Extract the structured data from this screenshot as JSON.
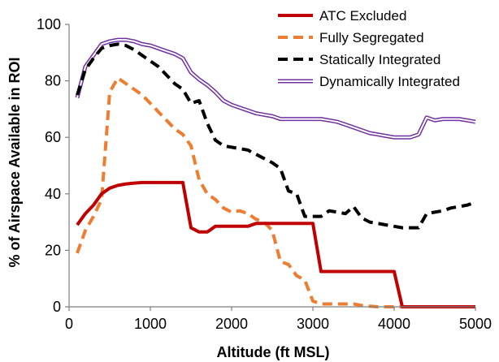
{
  "chart_data": {
    "type": "line",
    "title": "",
    "xlabel": "Altitude (ft MSL)",
    "ylabel": "% of Airspace Available in ROI",
    "xlim": [
      0,
      5000
    ],
    "ylim": [
      0,
      100
    ],
    "xticks": [
      0,
      1000,
      2000,
      3000,
      4000,
      5000
    ],
    "yticks": [
      0,
      20,
      40,
      60,
      80,
      100
    ],
    "grid": false,
    "legend_position": "top-right",
    "series": [
      {
        "name": "ATC Excluded",
        "color": "#c00000",
        "style": "solid",
        "points": [
          [
            100,
            29
          ],
          [
            200,
            33
          ],
          [
            300,
            36
          ],
          [
            400,
            40
          ],
          [
            500,
            42
          ],
          [
            600,
            43
          ],
          [
            700,
            43.5
          ],
          [
            800,
            43.8
          ],
          [
            900,
            44
          ],
          [
            1000,
            44
          ],
          [
            1100,
            44
          ],
          [
            1200,
            44
          ],
          [
            1300,
            44
          ],
          [
            1400,
            44
          ],
          [
            1500,
            28
          ],
          [
            1600,
            26.5
          ],
          [
            1700,
            26.5
          ],
          [
            1800,
            28.5
          ],
          [
            1900,
            28.5
          ],
          [
            2000,
            28.5
          ],
          [
            2100,
            28.5
          ],
          [
            2200,
            28.5
          ],
          [
            2300,
            29.5
          ],
          [
            2400,
            29.5
          ],
          [
            2500,
            29.5
          ],
          [
            2600,
            29.5
          ],
          [
            2700,
            29.5
          ],
          [
            2800,
            29.5
          ],
          [
            2900,
            29.5
          ],
          [
            3000,
            29.5
          ],
          [
            3100,
            12.5
          ],
          [
            3200,
            12.5
          ],
          [
            3300,
            12.5
          ],
          [
            3400,
            12.5
          ],
          [
            3500,
            12.5
          ],
          [
            3600,
            12.5
          ],
          [
            3700,
            12.5
          ],
          [
            3800,
            12.5
          ],
          [
            3900,
            12.5
          ],
          [
            4000,
            12.5
          ],
          [
            4100,
            0
          ],
          [
            4200,
            0
          ],
          [
            4300,
            0
          ],
          [
            4400,
            0
          ],
          [
            4500,
            0
          ],
          [
            4600,
            0
          ],
          [
            4700,
            0
          ],
          [
            4800,
            0
          ],
          [
            4900,
            0
          ],
          [
            5000,
            0
          ]
        ]
      },
      {
        "name": "Fully Segregated",
        "color": "#ed7d31",
        "style": "dashed",
        "points": [
          [
            100,
            19
          ],
          [
            200,
            27
          ],
          [
            300,
            32
          ],
          [
            400,
            38
          ],
          [
            500,
            76
          ],
          [
            600,
            81
          ],
          [
            700,
            79
          ],
          [
            800,
            77
          ],
          [
            900,
            75
          ],
          [
            1000,
            72
          ],
          [
            1100,
            69
          ],
          [
            1200,
            66
          ],
          [
            1300,
            63
          ],
          [
            1400,
            61
          ],
          [
            1500,
            57
          ],
          [
            1600,
            45
          ],
          [
            1700,
            40
          ],
          [
            1800,
            38
          ],
          [
            1900,
            35
          ],
          [
            2000,
            33.5
          ],
          [
            2100,
            34
          ],
          [
            2200,
            33
          ],
          [
            2300,
            31
          ],
          [
            2400,
            30
          ],
          [
            2500,
            27
          ],
          [
            2600,
            16
          ],
          [
            2700,
            15
          ],
          [
            2800,
            11
          ],
          [
            2900,
            9.5
          ],
          [
            3000,
            2
          ],
          [
            3100,
            1
          ],
          [
            3200,
            1
          ],
          [
            3300,
            1
          ],
          [
            3400,
            1
          ],
          [
            3500,
            1
          ],
          [
            3600,
            0.5
          ],
          [
            3700,
            0.2
          ],
          [
            3800,
            0
          ],
          [
            3900,
            0
          ],
          [
            4000,
            0
          ],
          [
            4100,
            0
          ],
          [
            4200,
            0
          ],
          [
            4300,
            0
          ],
          [
            4400,
            0
          ],
          [
            4500,
            0
          ],
          [
            4600,
            0
          ],
          [
            4700,
            0
          ],
          [
            4800,
            0
          ],
          [
            4900,
            0
          ],
          [
            5000,
            0
          ]
        ]
      },
      {
        "name": "Statically Integrated",
        "color": "#000000",
        "style": "dashed",
        "points": [
          [
            100,
            75
          ],
          [
            200,
            84
          ],
          [
            300,
            88
          ],
          [
            400,
            91.5
          ],
          [
            500,
            92.5
          ],
          [
            600,
            93
          ],
          [
            700,
            92.5
          ],
          [
            800,
            91
          ],
          [
            900,
            89
          ],
          [
            1000,
            87
          ],
          [
            1100,
            85
          ],
          [
            1200,
            82
          ],
          [
            1300,
            79
          ],
          [
            1400,
            77
          ],
          [
            1500,
            72
          ],
          [
            1600,
            73
          ],
          [
            1700,
            65
          ],
          [
            1800,
            59
          ],
          [
            1900,
            57
          ],
          [
            2000,
            56.5
          ],
          [
            2100,
            56
          ],
          [
            2200,
            55.5
          ],
          [
            2300,
            54
          ],
          [
            2400,
            52.5
          ],
          [
            2500,
            51
          ],
          [
            2600,
            49
          ],
          [
            2700,
            41
          ],
          [
            2800,
            40
          ],
          [
            2900,
            32
          ],
          [
            3000,
            32
          ],
          [
            3100,
            32
          ],
          [
            3200,
            34
          ],
          [
            3300,
            33.5
          ],
          [
            3400,
            33
          ],
          [
            3500,
            35.5
          ],
          [
            3600,
            31.5
          ],
          [
            3700,
            30
          ],
          [
            3800,
            29.5
          ],
          [
            3900,
            29
          ],
          [
            4000,
            28.5
          ],
          [
            4100,
            28
          ],
          [
            4200,
            28
          ],
          [
            4300,
            28
          ],
          [
            4400,
            33
          ],
          [
            4500,
            33.5
          ],
          [
            4600,
            34
          ],
          [
            4700,
            35
          ],
          [
            4800,
            35.5
          ],
          [
            4900,
            36
          ],
          [
            5000,
            37
          ]
        ]
      },
      {
        "name": "Dynamically Integrated",
        "color": "#7030a0",
        "style": "double",
        "points": [
          [
            100,
            74
          ],
          [
            200,
            85
          ],
          [
            300,
            89
          ],
          [
            400,
            93
          ],
          [
            500,
            94
          ],
          [
            600,
            94.5
          ],
          [
            700,
            94.5
          ],
          [
            800,
            94
          ],
          [
            900,
            93
          ],
          [
            1000,
            92.5
          ],
          [
            1100,
            91.5
          ],
          [
            1200,
            90.5
          ],
          [
            1300,
            89.5
          ],
          [
            1400,
            88
          ],
          [
            1500,
            83
          ],
          [
            1600,
            80.5
          ],
          [
            1700,
            78.5
          ],
          [
            1800,
            76
          ],
          [
            1900,
            73
          ],
          [
            2000,
            71.5
          ],
          [
            2100,
            70.5
          ],
          [
            2200,
            69.5
          ],
          [
            2300,
            68.5
          ],
          [
            2400,
            68
          ],
          [
            2500,
            67.5
          ],
          [
            2600,
            66.5
          ],
          [
            2700,
            66.5
          ],
          [
            2800,
            66.5
          ],
          [
            2900,
            66.5
          ],
          [
            3000,
            66.5
          ],
          [
            3100,
            66.5
          ],
          [
            3200,
            66
          ],
          [
            3300,
            65.5
          ],
          [
            3400,
            64.5
          ],
          [
            3500,
            63.5
          ],
          [
            3600,
            62.5
          ],
          [
            3700,
            61.5
          ],
          [
            3800,
            61
          ],
          [
            3900,
            60.5
          ],
          [
            4000,
            60
          ],
          [
            4100,
            60
          ],
          [
            4200,
            60
          ],
          [
            4300,
            61
          ],
          [
            4400,
            67
          ],
          [
            4500,
            66
          ],
          [
            4600,
            66.5
          ],
          [
            4700,
            66.5
          ],
          [
            4800,
            66.5
          ],
          [
            4900,
            66
          ],
          [
            5000,
            65.5
          ]
        ]
      }
    ]
  }
}
